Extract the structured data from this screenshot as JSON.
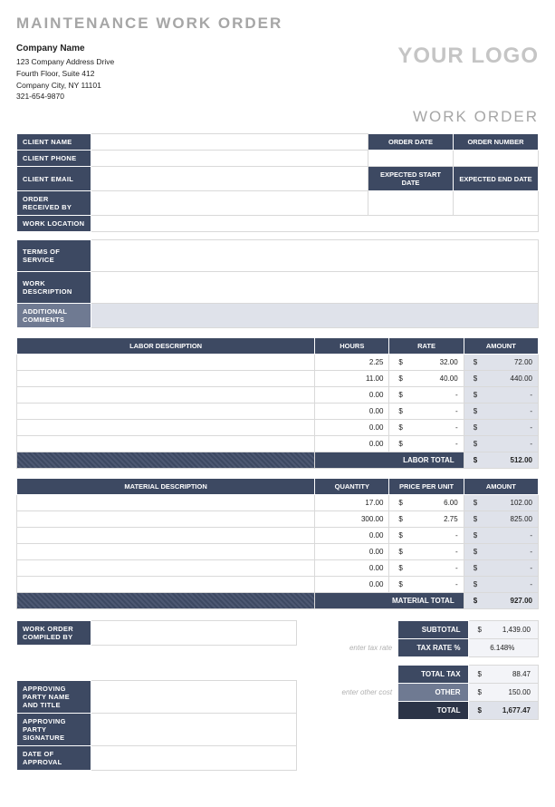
{
  "colors": {
    "header_bg": "#3d4962",
    "header_alt_bg": "#6f7a92",
    "amount_bg": "#dfe2ea",
    "text_gray": "#a6a6a6"
  },
  "page_title": "MAINTENANCE WORK ORDER",
  "logo_text": "YOUR LOGO",
  "work_order_title": "WORK ORDER",
  "company": {
    "name": "Company Name",
    "addr1": "123 Company Address Drive",
    "addr2": "Fourth Floor, Suite 412",
    "city": "Company City, NY 11101",
    "phone": "321-654-9870"
  },
  "client_labels": {
    "name": "CLIENT NAME",
    "phone": "CLIENT PHONE",
    "email": "CLIENT EMAIL",
    "received": "ORDER RECEIVED BY",
    "location": "WORK LOCATION",
    "order_date": "ORDER DATE",
    "order_number": "ORDER NUMBER",
    "exp_start": "EXPECTED START DATE",
    "exp_end": "EXPECTED END DATE"
  },
  "desc_labels": {
    "terms": "TERMS OF SERVICE",
    "work": "WORK DESCRIPTION",
    "comments": "ADDITIONAL COMMENTS"
  },
  "labor": {
    "headers": {
      "desc": "LABOR DESCRIPTION",
      "hours": "HOURS",
      "rate": "RATE",
      "amount": "AMOUNT"
    },
    "rows": [
      {
        "desc": "",
        "hours": "2.25",
        "rate": "32.00",
        "amount": "72.00"
      },
      {
        "desc": "",
        "hours": "11.00",
        "rate": "40.00",
        "amount": "440.00"
      },
      {
        "desc": "",
        "hours": "0.00",
        "rate": "-",
        "amount": "-"
      },
      {
        "desc": "",
        "hours": "0.00",
        "rate": "-",
        "amount": "-"
      },
      {
        "desc": "",
        "hours": "0.00",
        "rate": "-",
        "amount": "-"
      },
      {
        "desc": "",
        "hours": "0.00",
        "rate": "-",
        "amount": "-"
      }
    ],
    "total_label": "LABOR TOTAL",
    "total": "512.00"
  },
  "material": {
    "headers": {
      "desc": "MATERIAL DESCRIPTION",
      "qty": "QUANTITY",
      "price": "PRICE PER UNIT",
      "amount": "AMOUNT"
    },
    "rows": [
      {
        "desc": "",
        "qty": "17.00",
        "price": "6.00",
        "amount": "102.00"
      },
      {
        "desc": "",
        "qty": "300.00",
        "price": "2.75",
        "amount": "825.00"
      },
      {
        "desc": "",
        "qty": "0.00",
        "price": "-",
        "amount": "-"
      },
      {
        "desc": "",
        "qty": "0.00",
        "price": "-",
        "amount": "-"
      },
      {
        "desc": "",
        "qty": "0.00",
        "price": "-",
        "amount": "-"
      },
      {
        "desc": "",
        "qty": "0.00",
        "price": "-",
        "amount": "-"
      }
    ],
    "total_label": "MATERIAL TOTAL",
    "total": "927.00"
  },
  "bottom_labels": {
    "compiled": "WORK ORDER COMPILED BY",
    "party_name": "APPROVING PARTY NAME AND TITLE",
    "party_sig": "APPROVING PARTY SIGNATURE",
    "approval_date": "DATE OF APPROVAL"
  },
  "hints": {
    "tax": "enter tax rate",
    "other": "enter other cost"
  },
  "summary": {
    "subtotal_lbl": "SUBTOTAL",
    "subtotal": "1,439.00",
    "taxrate_lbl": "TAX RATE %",
    "taxrate": "6.148%",
    "totaltax_lbl": "TOTAL TAX",
    "totaltax": "88.47",
    "other_lbl": "OTHER",
    "other": "150.00",
    "total_lbl": "TOTAL",
    "total": "1,677.47"
  },
  "currency": "$"
}
